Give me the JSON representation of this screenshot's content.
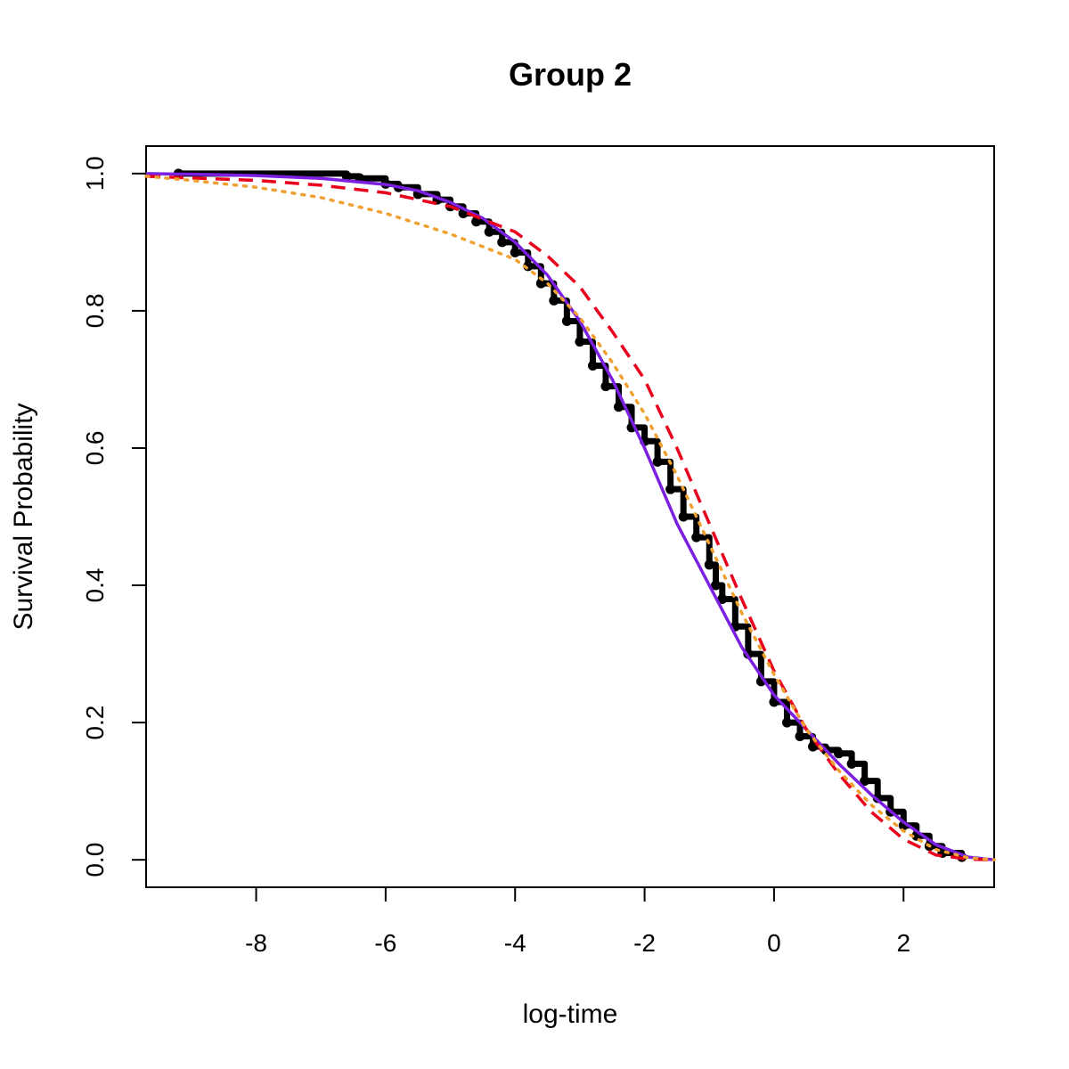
{
  "chart_data": {
    "type": "line",
    "title": "Group 2",
    "xlabel": "log-time",
    "ylabel": "Survival Probability",
    "xlim": [
      -9.7,
      3.4
    ],
    "ylim": [
      -0.04,
      1.04
    ],
    "x_ticks": [
      -8,
      -6,
      -4,
      -2,
      0,
      2
    ],
    "x_tick_labels": [
      "-8",
      "-6",
      "-4",
      "-2",
      "0",
      "2"
    ],
    "y_ticks": [
      0.0,
      0.2,
      0.4,
      0.6,
      0.8,
      1.0
    ],
    "y_tick_labels": [
      "0.0",
      "0.2",
      "0.4",
      "0.6",
      "0.8",
      "1.0"
    ],
    "grid": false,
    "legend": false,
    "series": [
      {
        "color": "#000000",
        "style": "step-points",
        "x": [
          -9.2,
          -6.6,
          -6.4,
          -6.0,
          -5.8,
          -5.5,
          -5.2,
          -5.0,
          -4.8,
          -4.6,
          -4.4,
          -4.2,
          -4.0,
          -3.8,
          -3.6,
          -3.4,
          -3.2,
          -3.0,
          -2.8,
          -2.6,
          -2.4,
          -2.2,
          -2.0,
          -1.8,
          -1.6,
          -1.4,
          -1.2,
          -1.0,
          -0.9,
          -0.8,
          -0.6,
          -0.4,
          -0.2,
          0.0,
          0.2,
          0.4,
          0.6,
          0.8,
          1.0,
          1.2,
          1.4,
          1.6,
          1.8,
          2.0,
          2.2,
          2.4,
          2.6,
          2.9
        ],
        "y": [
          1.0,
          0.996,
          0.993,
          0.985,
          0.98,
          0.97,
          0.962,
          0.952,
          0.942,
          0.93,
          0.915,
          0.9,
          0.885,
          0.865,
          0.84,
          0.815,
          0.785,
          0.755,
          0.72,
          0.69,
          0.66,
          0.63,
          0.61,
          0.58,
          0.54,
          0.5,
          0.47,
          0.43,
          0.4,
          0.38,
          0.34,
          0.3,
          0.26,
          0.23,
          0.2,
          0.18,
          0.165,
          0.16,
          0.155,
          0.14,
          0.115,
          0.09,
          0.07,
          0.05,
          0.035,
          0.02,
          0.01,
          0.004
        ]
      },
      {
        "color": "#7b1fe0",
        "style": "solid",
        "x": [
          -9.7,
          -9.0,
          -8.0,
          -7.0,
          -6.0,
          -5.5,
          -5.0,
          -4.5,
          -4.0,
          -3.5,
          -3.0,
          -2.5,
          -2.0,
          -1.5,
          -1.0,
          -0.5,
          0.0,
          0.5,
          1.0,
          1.5,
          2.0,
          2.5,
          3.0,
          3.4
        ],
        "y": [
          1.0,
          0.999,
          0.997,
          0.993,
          0.984,
          0.975,
          0.958,
          0.935,
          0.9,
          0.852,
          0.785,
          0.7,
          0.6,
          0.49,
          0.4,
          0.31,
          0.24,
          0.19,
          0.14,
          0.095,
          0.055,
          0.022,
          0.004,
          0.0
        ]
      },
      {
        "color": "#e8001c",
        "style": "dashed",
        "x": [
          -9.7,
          -8.0,
          -7.0,
          -6.0,
          -5.0,
          -4.0,
          -3.5,
          -3.0,
          -2.5,
          -2.0,
          -1.5,
          -1.0,
          -0.5,
          0.0,
          0.5,
          1.0,
          1.5,
          2.0,
          2.5,
          3.0,
          3.4
        ],
        "y": [
          0.996,
          0.99,
          0.983,
          0.972,
          0.952,
          0.915,
          0.88,
          0.835,
          0.77,
          0.7,
          0.6,
          0.49,
          0.38,
          0.275,
          0.19,
          0.125,
          0.07,
          0.03,
          0.007,
          0.001,
          0.0
        ]
      },
      {
        "color": "#f0a030",
        "style": "dotted",
        "x": [
          -9.7,
          -9.0,
          -8.0,
          -7.0,
          -6.0,
          -5.0,
          -4.0,
          -3.5,
          -3.0,
          -2.5,
          -2.0,
          -1.5,
          -1.0,
          -0.5,
          0.0,
          0.5,
          1.0,
          1.5,
          2.0,
          2.5,
          3.0,
          3.4
        ],
        "y": [
          0.996,
          0.99,
          0.98,
          0.965,
          0.942,
          0.912,
          0.875,
          0.84,
          0.79,
          0.725,
          0.65,
          0.56,
          0.46,
          0.36,
          0.27,
          0.19,
          0.13,
          0.08,
          0.042,
          0.015,
          0.003,
          0.0
        ]
      }
    ]
  }
}
